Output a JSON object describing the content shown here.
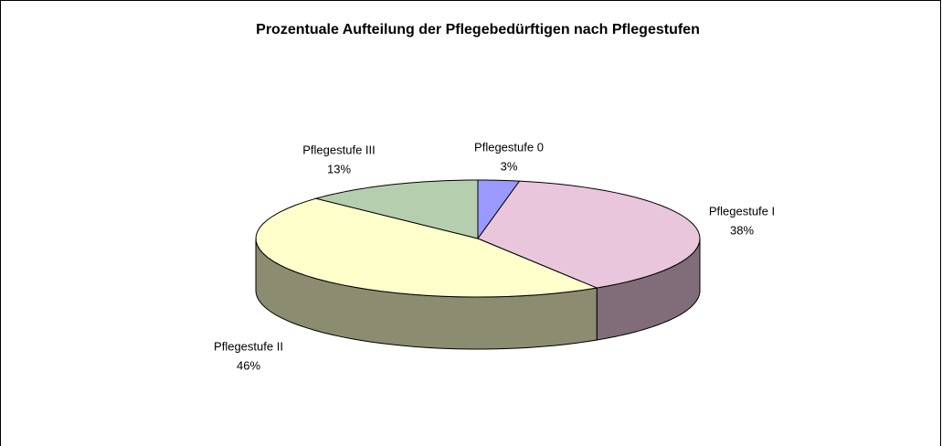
{
  "chart_data": {
    "type": "pie3d",
    "title": "Prozentuale Aufteilung der Pflegebedürftigen nach Pflegestufen",
    "categories": [
      "Pflegestufe 0",
      "Pflegestufe I",
      "Pflegestufe II",
      "Pflegestufe III"
    ],
    "values": [
      3,
      38,
      46,
      13
    ],
    "value_labels": [
      "3%",
      "38%",
      "46%",
      "13%"
    ],
    "colors": [
      "#9999ff",
      "#e9c6dc",
      "#ffffcc",
      "#b5cfae"
    ]
  }
}
